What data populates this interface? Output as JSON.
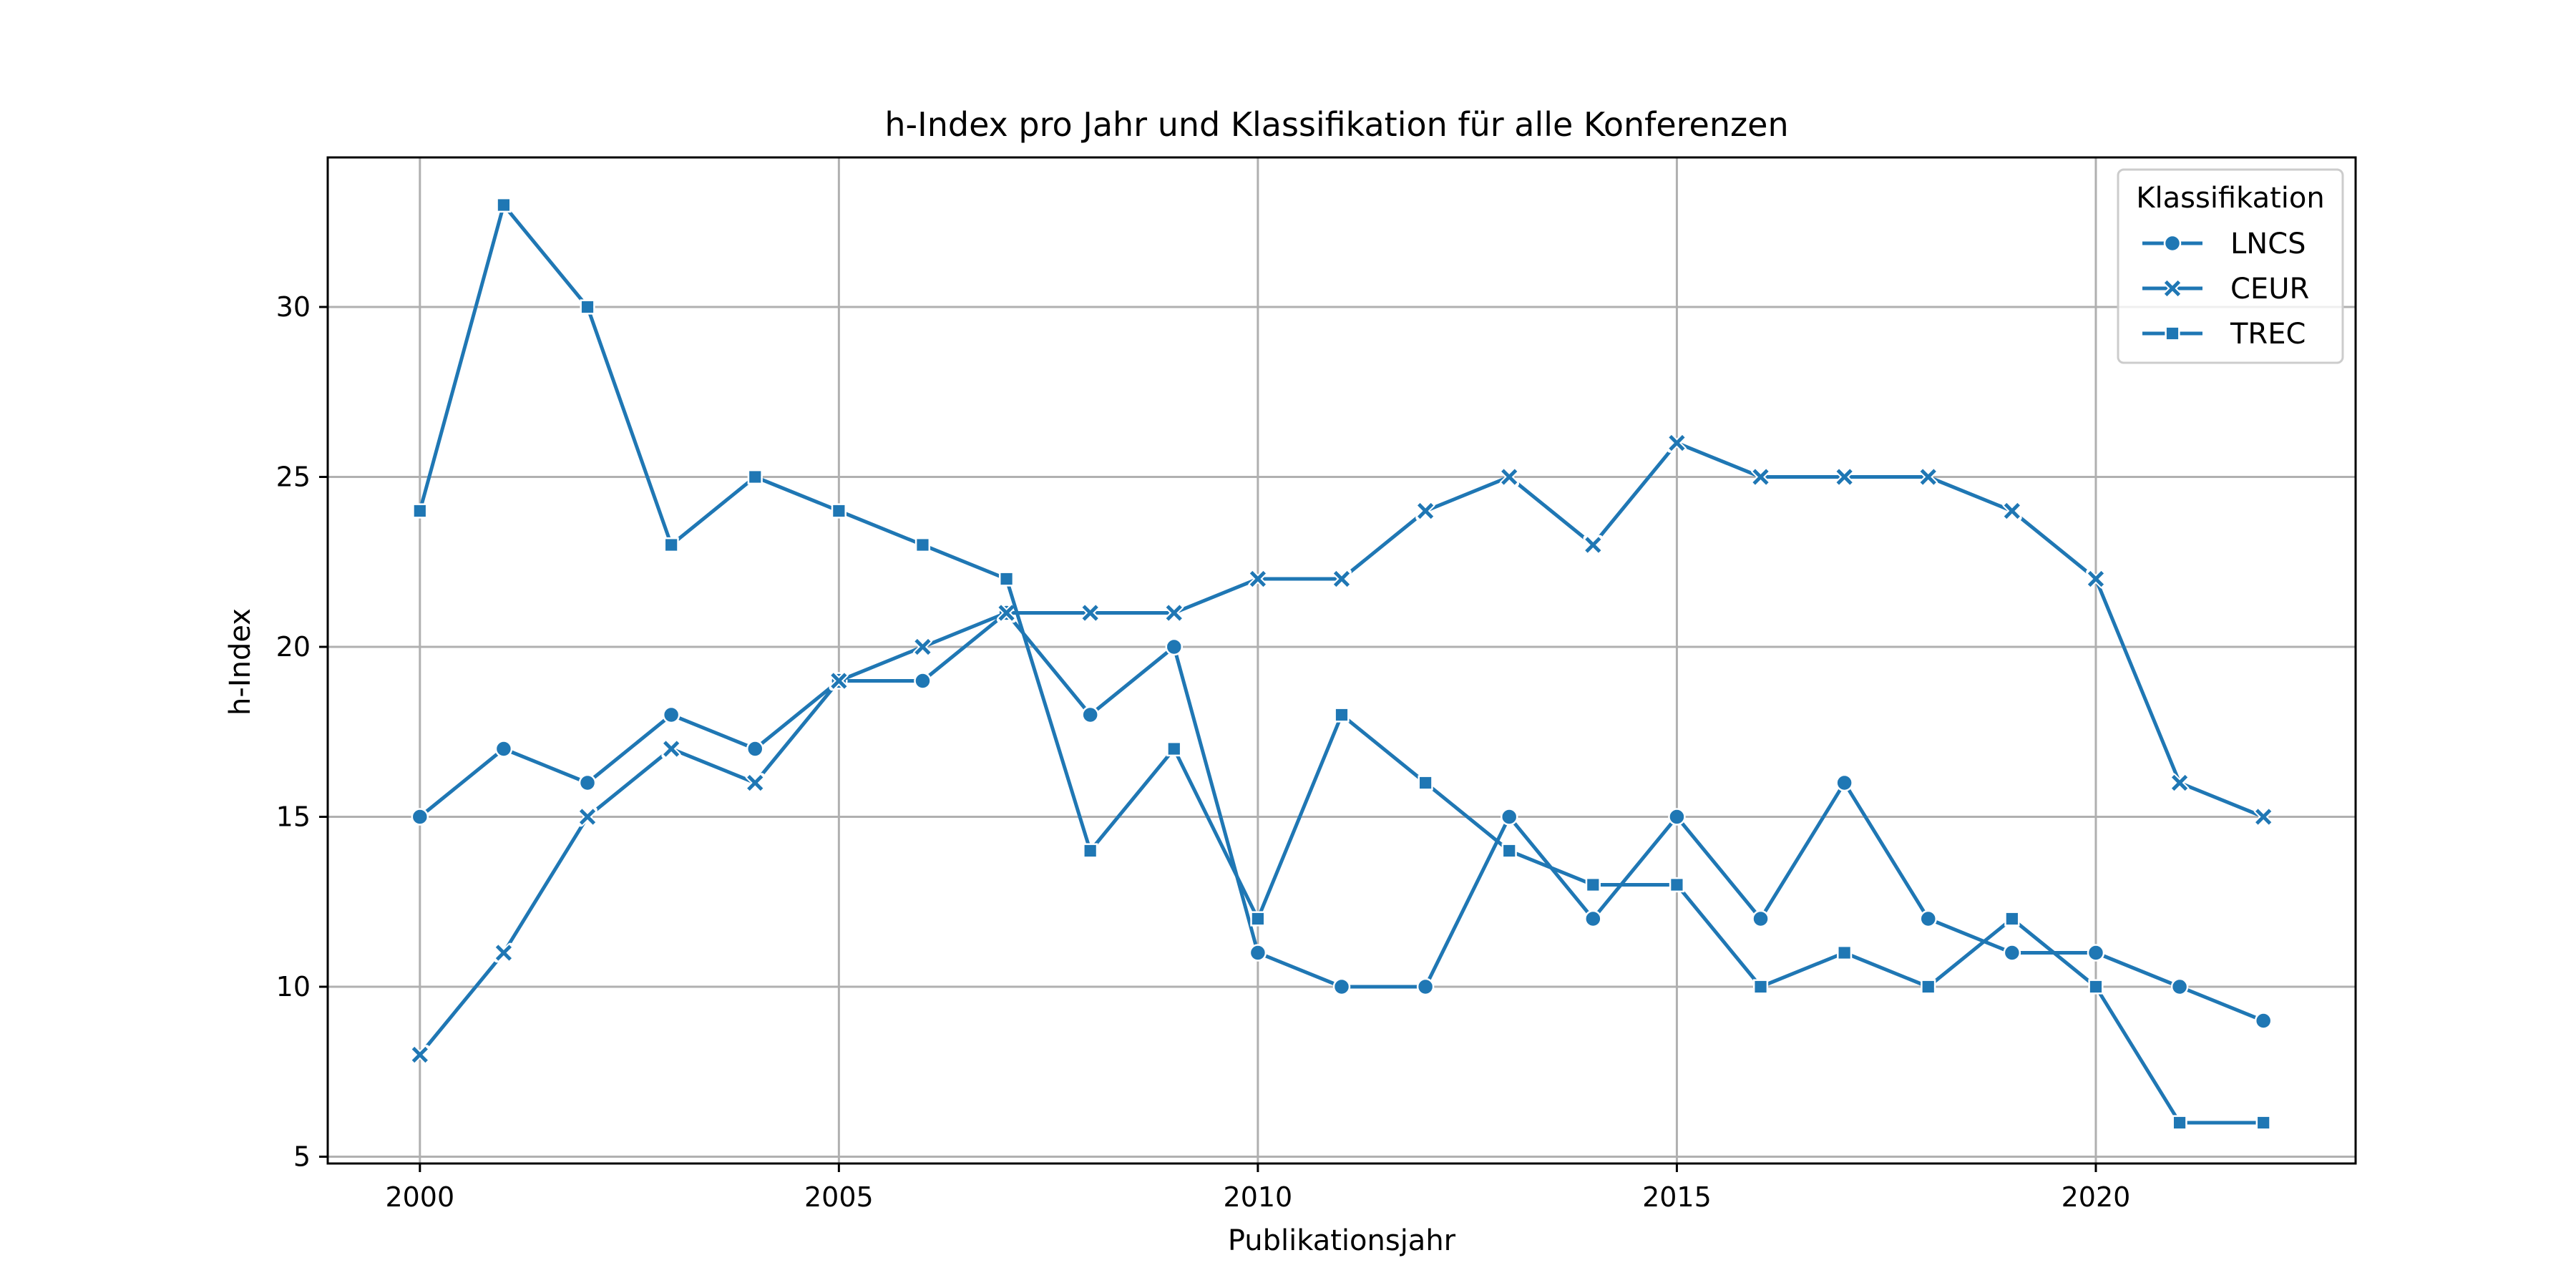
{
  "chart_data": {
    "type": "line",
    "title": "h-Index pro Jahr und Klassifikation für alle Konferenzen",
    "xlabel": "Publikationsjahr",
    "ylabel": "h-Index",
    "x": [
      2000,
      2001,
      2002,
      2003,
      2004,
      2005,
      2006,
      2007,
      2008,
      2009,
      2010,
      2011,
      2012,
      2013,
      2014,
      2015,
      2016,
      2017,
      2018,
      2019,
      2020,
      2021,
      2022
    ],
    "xlim": [
      1998.9,
      2023.1
    ],
    "ylim": [
      4.8,
      34.4
    ],
    "xticks": [
      2000,
      2005,
      2010,
      2015,
      2020
    ],
    "yticks": [
      5,
      10,
      15,
      20,
      25,
      30
    ],
    "grid": true,
    "legend": {
      "title": "Klassifikation",
      "placement": "top-right"
    },
    "color": "#1f77b4",
    "series": [
      {
        "name": "LNCS",
        "marker": "circle",
        "values": [
          15,
          17,
          16,
          18,
          17,
          19,
          19,
          21,
          18,
          20,
          11,
          10,
          10,
          15,
          12,
          15,
          12,
          16,
          12,
          11,
          11,
          10,
          9
        ]
      },
      {
        "name": "CEUR",
        "marker": "x",
        "values": [
          8,
          11,
          15,
          17,
          16,
          19,
          20,
          21,
          21,
          21,
          22,
          22,
          24,
          25,
          23,
          26,
          25,
          25,
          25,
          24,
          22,
          16,
          15
        ]
      },
      {
        "name": "TREC",
        "marker": "square",
        "values": [
          24,
          33,
          30,
          23,
          25,
          24,
          23,
          22,
          14,
          17,
          12,
          18,
          16,
          14,
          13,
          13,
          10,
          11,
          10,
          12,
          10,
          6,
          6
        ]
      }
    ]
  }
}
